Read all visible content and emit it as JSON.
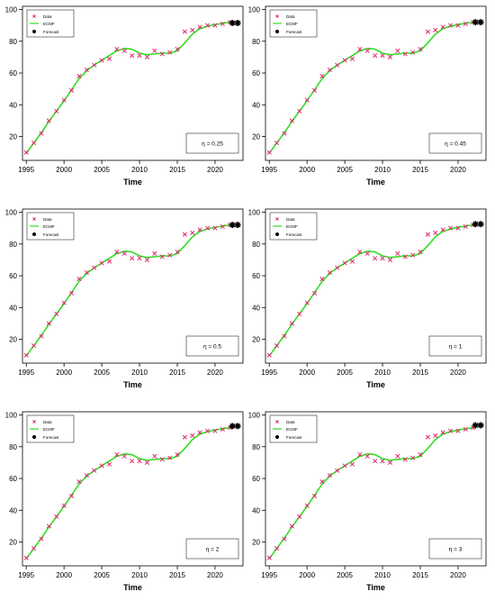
{
  "chart_data": [
    {
      "type": "line",
      "xlabel": "Time",
      "ylabel": "",
      "xlim": [
        1994.5,
        2023.7
      ],
      "ylim": [
        5,
        102
      ],
      "xticks": [
        1995,
        2000,
        2005,
        2010,
        2015,
        2020
      ],
      "yticks": [
        20,
        40,
        60,
        80,
        100
      ],
      "legend": [
        "Data",
        "ECMF",
        "Forecast"
      ],
      "legend_position": "top-left",
      "annotation": "η = 0.25",
      "series": [
        {
          "name": "Data",
          "marker": "x",
          "color": "#e0286e",
          "x": [
            1995,
            1996,
            1997,
            1998,
            1999,
            2000,
            2001,
            2002,
            2003,
            2004,
            2005,
            2006,
            2007,
            2008,
            2009,
            2010,
            2011,
            2012,
            2013,
            2014,
            2015,
            2016,
            2017,
            2018,
            2019,
            2020,
            2021,
            2022
          ],
          "y": [
            10,
            16,
            22,
            30,
            36,
            43,
            49,
            58,
            62,
            65,
            68,
            69,
            75,
            74,
            71,
            71,
            70,
            74,
            72,
            73,
            75,
            86,
            87,
            89,
            90,
            90,
            91,
            92
          ]
        },
        {
          "name": "ECMF",
          "color": "#33dd22",
          "x": [
            1995,
            1996,
            1997,
            1998,
            1999,
            2000,
            2001,
            2002,
            2003,
            2004,
            2005,
            2006,
            2007,
            2008,
            2009,
            2010,
            2011,
            2012,
            2013,
            2014,
            2015,
            2016,
            2017,
            2018,
            2019,
            2020,
            2021,
            2022
          ],
          "y": [
            9.5,
            16,
            22.5,
            29.5,
            36,
            42.5,
            49.5,
            56.5,
            61.5,
            65,
            68,
            71,
            74,
            75.5,
            75,
            72.5,
            71.5,
            72,
            72.5,
            72.5,
            74,
            79,
            84.5,
            88,
            89.5,
            90.5,
            91.3,
            92
          ]
        },
        {
          "name": "Forecast",
          "marker": "asterisk",
          "color": "#000000",
          "x": [
            2022.3,
            2023
          ],
          "y": [
            91.5,
            91.5
          ]
        }
      ]
    },
    {
      "type": "line",
      "xlabel": "Time",
      "ylabel": "",
      "xlim": [
        1994.5,
        2023.7
      ],
      "ylim": [
        5,
        102
      ],
      "xticks": [
        1995,
        2000,
        2005,
        2010,
        2015,
        2020
      ],
      "yticks": [
        20,
        40,
        60,
        80,
        100
      ],
      "legend": [
        "Data",
        "ECMF",
        "Forecast"
      ],
      "legend_position": "top-left",
      "annotation": "η = 0.45",
      "series": [
        {
          "name": "Data",
          "marker": "x",
          "color": "#e0286e",
          "x": [
            1995,
            1996,
            1997,
            1998,
            1999,
            2000,
            2001,
            2002,
            2003,
            2004,
            2005,
            2006,
            2007,
            2008,
            2009,
            2010,
            2011,
            2012,
            2013,
            2014,
            2015,
            2016,
            2017,
            2018,
            2019,
            2020,
            2021,
            2022
          ],
          "y": [
            10,
            16,
            22,
            30,
            36,
            43,
            49,
            58,
            62,
            65,
            68,
            69,
            75,
            74,
            71,
            71,
            70,
            74,
            72,
            73,
            75,
            86,
            87,
            89,
            90,
            90,
            91,
            92
          ]
        },
        {
          "name": "ECMF",
          "color": "#33dd22",
          "x": [
            1995,
            1996,
            1997,
            1998,
            1999,
            2000,
            2001,
            2002,
            2003,
            2004,
            2005,
            2006,
            2007,
            2008,
            2009,
            2010,
            2011,
            2012,
            2013,
            2014,
            2015,
            2016,
            2017,
            2018,
            2019,
            2020,
            2021,
            2022
          ],
          "y": [
            9.5,
            16,
            22.5,
            29.5,
            36,
            42.5,
            49.5,
            56.5,
            61.5,
            65,
            68,
            71,
            74,
            75.5,
            75,
            72.5,
            71.5,
            72,
            72.5,
            72.5,
            74,
            79,
            84.5,
            88,
            89.5,
            90.5,
            91.3,
            92
          ]
        },
        {
          "name": "Forecast",
          "marker": "asterisk",
          "color": "#000000",
          "x": [
            2022.3,
            2023
          ],
          "y": [
            92,
            92
          ]
        }
      ]
    },
    {
      "type": "line",
      "xlabel": "Time",
      "ylabel": "",
      "xlim": [
        1994.5,
        2023.7
      ],
      "ylim": [
        5,
        102
      ],
      "xticks": [
        1995,
        2000,
        2005,
        2010,
        2015,
        2020
      ],
      "yticks": [
        20,
        40,
        60,
        80,
        100
      ],
      "legend": [
        "Data",
        "ECMF",
        "Forecast"
      ],
      "legend_position": "top-left",
      "annotation": "η = 0.5",
      "series": [
        {
          "name": "Data",
          "marker": "x",
          "color": "#e0286e",
          "x": [
            1995,
            1996,
            1997,
            1998,
            1999,
            2000,
            2001,
            2002,
            2003,
            2004,
            2005,
            2006,
            2007,
            2008,
            2009,
            2010,
            2011,
            2012,
            2013,
            2014,
            2015,
            2016,
            2017,
            2018,
            2019,
            2020,
            2021,
            2022
          ],
          "y": [
            10,
            16,
            22,
            30,
            36,
            43,
            49,
            58,
            62,
            65,
            68,
            69,
            75,
            74,
            71,
            71,
            70,
            74,
            72,
            73,
            75,
            86,
            87,
            89,
            90,
            90,
            91,
            92
          ]
        },
        {
          "name": "ECMF",
          "color": "#33dd22",
          "x": [
            1995,
            1996,
            1997,
            1998,
            1999,
            2000,
            2001,
            2002,
            2003,
            2004,
            2005,
            2006,
            2007,
            2008,
            2009,
            2010,
            2011,
            2012,
            2013,
            2014,
            2015,
            2016,
            2017,
            2018,
            2019,
            2020,
            2021,
            2022
          ],
          "y": [
            9.5,
            16,
            22.5,
            29.5,
            36,
            42.5,
            49.5,
            56.5,
            61.5,
            65,
            68,
            71,
            74,
            75.5,
            75,
            72.5,
            71.5,
            72,
            72.5,
            72.5,
            74,
            79,
            84.5,
            88,
            89.5,
            90.5,
            91.3,
            92
          ]
        },
        {
          "name": "Forecast",
          "marker": "asterisk",
          "color": "#000000",
          "x": [
            2022.3,
            2023
          ],
          "y": [
            92,
            92
          ]
        }
      ]
    },
    {
      "type": "line",
      "xlabel": "Time",
      "ylabel": "",
      "xlim": [
        1994.5,
        2023.7
      ],
      "ylim": [
        5,
        102
      ],
      "xticks": [
        1995,
        2000,
        2005,
        2010,
        2015,
        2020
      ],
      "yticks": [
        20,
        40,
        60,
        80,
        100
      ],
      "legend": [
        "Data",
        "ECMF",
        "Forecast"
      ],
      "legend_position": "top-left",
      "annotation": "η = 1",
      "series": [
        {
          "name": "Data",
          "marker": "x",
          "color": "#e0286e",
          "x": [
            1995,
            1996,
            1997,
            1998,
            1999,
            2000,
            2001,
            2002,
            2003,
            2004,
            2005,
            2006,
            2007,
            2008,
            2009,
            2010,
            2011,
            2012,
            2013,
            2014,
            2015,
            2016,
            2017,
            2018,
            2019,
            2020,
            2021,
            2022
          ],
          "y": [
            10,
            16,
            22,
            30,
            36,
            43,
            49,
            58,
            62,
            65,
            68,
            69,
            75,
            74,
            71,
            71,
            70,
            74,
            72,
            73,
            75,
            86,
            87,
            89,
            90,
            90,
            91,
            92
          ]
        },
        {
          "name": "ECMF",
          "color": "#33dd22",
          "x": [
            1995,
            1996,
            1997,
            1998,
            1999,
            2000,
            2001,
            2002,
            2003,
            2004,
            2005,
            2006,
            2007,
            2008,
            2009,
            2010,
            2011,
            2012,
            2013,
            2014,
            2015,
            2016,
            2017,
            2018,
            2019,
            2020,
            2021,
            2022
          ],
          "y": [
            9.5,
            16,
            22.5,
            29.5,
            36,
            42.5,
            49.5,
            56.5,
            61.5,
            65,
            68,
            71,
            74,
            75.5,
            75,
            72.5,
            71.5,
            72,
            72.5,
            72.5,
            74,
            79,
            84.5,
            88,
            89.5,
            90.5,
            91.3,
            92
          ]
        },
        {
          "name": "Forecast",
          "marker": "asterisk",
          "color": "#000000",
          "x": [
            2022.3,
            2023
          ],
          "y": [
            92.5,
            92.5
          ]
        }
      ]
    },
    {
      "type": "line",
      "xlabel": "Time",
      "ylabel": "",
      "xlim": [
        1994.5,
        2023.7
      ],
      "ylim": [
        5,
        102
      ],
      "xticks": [
        1995,
        2000,
        2005,
        2010,
        2015,
        2020
      ],
      "yticks": [
        20,
        40,
        60,
        80,
        100
      ],
      "legend": [
        "Data",
        "ECMF",
        "Forecast"
      ],
      "legend_position": "top-left",
      "annotation": "η = 2",
      "series": [
        {
          "name": "Data",
          "marker": "x",
          "color": "#e0286e",
          "x": [
            1995,
            1996,
            1997,
            1998,
            1999,
            2000,
            2001,
            2002,
            2003,
            2004,
            2005,
            2006,
            2007,
            2008,
            2009,
            2010,
            2011,
            2012,
            2013,
            2014,
            2015,
            2016,
            2017,
            2018,
            2019,
            2020,
            2021,
            2022
          ],
          "y": [
            10,
            16,
            22,
            30,
            36,
            43,
            49,
            58,
            62,
            65,
            68,
            69,
            75,
            74,
            71,
            71,
            70,
            74,
            72,
            73,
            75,
            86,
            87,
            89,
            90,
            90,
            91,
            92
          ]
        },
        {
          "name": "ECMF",
          "color": "#33dd22",
          "x": [
            1995,
            1996,
            1997,
            1998,
            1999,
            2000,
            2001,
            2002,
            2003,
            2004,
            2005,
            2006,
            2007,
            2008,
            2009,
            2010,
            2011,
            2012,
            2013,
            2014,
            2015,
            2016,
            2017,
            2018,
            2019,
            2020,
            2021,
            2022
          ],
          "y": [
            9.5,
            16,
            22.5,
            29.5,
            36,
            42.5,
            49.5,
            56.5,
            61.5,
            65,
            68,
            71,
            74,
            75.5,
            75,
            72.5,
            71.5,
            72,
            72.5,
            72.5,
            74,
            79,
            84.5,
            88,
            89.5,
            90.5,
            91.3,
            92
          ]
        },
        {
          "name": "Forecast",
          "marker": "asterisk",
          "color": "#000000",
          "x": [
            2022.3,
            2023
          ],
          "y": [
            93,
            93
          ]
        }
      ]
    },
    {
      "type": "line",
      "xlabel": "Time",
      "ylabel": "",
      "xlim": [
        1994.5,
        2023.7
      ],
      "ylim": [
        5,
        102
      ],
      "xticks": [
        1995,
        2000,
        2005,
        2010,
        2015,
        2020
      ],
      "yticks": [
        20,
        40,
        60,
        80,
        100
      ],
      "legend": [
        "Data",
        "ECMF",
        "Forecast"
      ],
      "legend_position": "top-left",
      "annotation": "η = 3",
      "series": [
        {
          "name": "Data",
          "marker": "x",
          "color": "#e0286e",
          "x": [
            1995,
            1996,
            1997,
            1998,
            1999,
            2000,
            2001,
            2002,
            2003,
            2004,
            2005,
            2006,
            2007,
            2008,
            2009,
            2010,
            2011,
            2012,
            2013,
            2014,
            2015,
            2016,
            2017,
            2018,
            2019,
            2020,
            2021,
            2022
          ],
          "y": [
            10,
            16,
            22,
            30,
            36,
            43,
            49,
            58,
            62,
            65,
            68,
            69,
            75,
            74,
            71,
            71,
            70,
            74,
            72,
            73,
            75,
            86,
            87,
            89,
            90,
            90,
            91,
            92
          ]
        },
        {
          "name": "ECMF",
          "color": "#33dd22",
          "x": [
            1995,
            1996,
            1997,
            1998,
            1999,
            2000,
            2001,
            2002,
            2003,
            2004,
            2005,
            2006,
            2007,
            2008,
            2009,
            2010,
            2011,
            2012,
            2013,
            2014,
            2015,
            2016,
            2017,
            2018,
            2019,
            2020,
            2021,
            2022
          ],
          "y": [
            9.5,
            16,
            22.5,
            29.5,
            36,
            42.5,
            49.5,
            56.5,
            61.5,
            65,
            68,
            71,
            74,
            75.5,
            75,
            72.5,
            71.5,
            72,
            72.5,
            72.5,
            74,
            79,
            84.5,
            88,
            89.5,
            90.5,
            91.3,
            92
          ]
        },
        {
          "name": "Forecast",
          "marker": "asterisk",
          "color": "#000000",
          "x": [
            2022.3,
            2023
          ],
          "y": [
            93.5,
            93.5
          ]
        }
      ]
    }
  ]
}
